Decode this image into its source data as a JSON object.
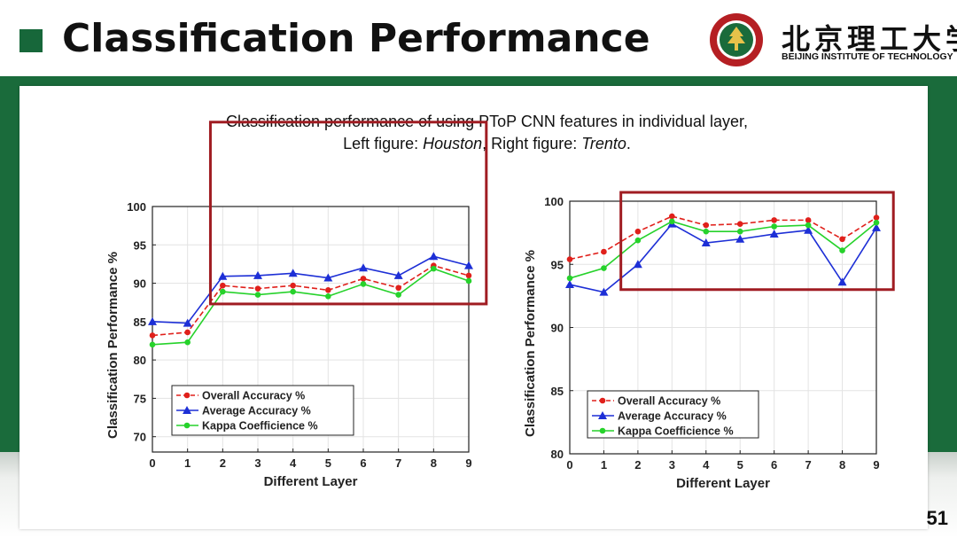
{
  "slide": {
    "title": "Classification Performance",
    "university_cn": "北京理工大学",
    "university_en": "BEIJING INSTITUTE OF TECHNOLOGY",
    "page_number": "51",
    "caption_line1": "Classification performance of using PToP CNN features in individual layer,",
    "caption_line2_prefix": "Left figure: ",
    "caption_line2_left": "Houston",
    "caption_line2_mid": ", Right figure: ",
    "caption_line2_right": "Trento",
    "caption_line2_suffix": ".",
    "colors": {
      "brand_green": "#1a6b3b",
      "highlight_box": "#a01c22"
    }
  },
  "chart_data": [
    {
      "type": "line",
      "dataset": "Houston",
      "x": [
        0,
        1,
        2,
        3,
        4,
        5,
        6,
        7,
        8,
        9
      ],
      "xlabel": "Different Layer",
      "ylabel": "Classification Performance %",
      "xlim": [
        0,
        9
      ],
      "ylim": [
        68,
        100
      ],
      "yticks": [
        70,
        75,
        80,
        85,
        90,
        95,
        100
      ],
      "grid": true,
      "legend_position": "bottom-left",
      "highlight_x_range": [
        1.65,
        9.5
      ],
      "highlight_y_range": [
        87.3,
        111
      ],
      "series": [
        {
          "name": "Overall Accuracy %",
          "color": "#e0201b",
          "dash": true,
          "marker": "dot",
          "values": [
            83.2,
            83.6,
            89.7,
            89.3,
            89.7,
            89.1,
            90.6,
            89.4,
            92.3,
            91.0
          ]
        },
        {
          "name": "Average Accuracy %",
          "color": "#1d2fd6",
          "dash": false,
          "marker": "triangle",
          "values": [
            85.0,
            84.8,
            90.9,
            91.0,
            91.3,
            90.7,
            92.0,
            91.0,
            93.5,
            92.3
          ]
        },
        {
          "name": "Kappa Coefficience %",
          "color": "#26d22b",
          "dash": false,
          "marker": "dot",
          "values": [
            82.0,
            82.3,
            88.9,
            88.5,
            88.9,
            88.3,
            89.9,
            88.5,
            91.9,
            90.3
          ]
        }
      ]
    },
    {
      "type": "line",
      "dataset": "Trento",
      "x": [
        0,
        1,
        2,
        3,
        4,
        5,
        6,
        7,
        8,
        9
      ],
      "xlabel": "Different Layer",
      "ylabel": "Classification Performance %",
      "xlim": [
        0,
        9
      ],
      "ylim": [
        80,
        100
      ],
      "yticks": [
        80,
        85,
        90,
        95,
        100
      ],
      "grid": true,
      "legend_position": "bottom-left",
      "highlight_x_range": [
        1.5,
        9.5
      ],
      "highlight_y_range": [
        93.0,
        100.7
      ],
      "series": [
        {
          "name": "Overall Accuracy %",
          "color": "#e0201b",
          "dash": true,
          "marker": "dot",
          "values": [
            95.4,
            96.0,
            97.6,
            98.8,
            98.1,
            98.2,
            98.5,
            98.5,
            97.0,
            98.7
          ]
        },
        {
          "name": "Average Accuracy %",
          "color": "#1d2fd6",
          "dash": false,
          "marker": "triangle",
          "values": [
            93.4,
            92.8,
            95.0,
            98.2,
            96.7,
            97.0,
            97.4,
            97.7,
            93.6,
            97.9
          ]
        },
        {
          "name": "Kappa Coefficience %",
          "color": "#26d22b",
          "dash": false,
          "marker": "dot",
          "values": [
            93.9,
            94.7,
            96.9,
            98.4,
            97.6,
            97.6,
            98.0,
            98.1,
            96.1,
            98.3
          ]
        }
      ]
    }
  ]
}
